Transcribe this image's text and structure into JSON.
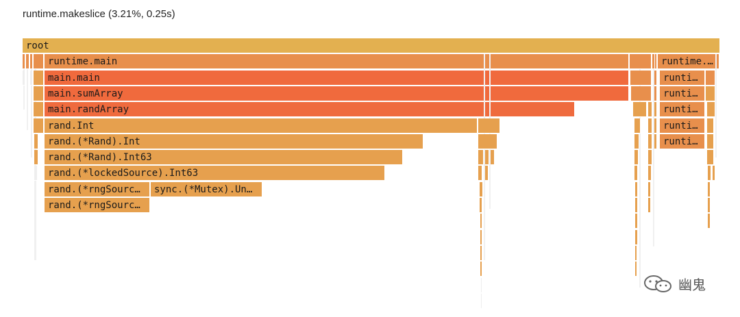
{
  "header": {
    "title": "runtime.makeslice (3.21%, 0.25s)"
  },
  "colors": {
    "root": "#e3b050",
    "level1": "#e88f4c",
    "hot": "#f06a3d",
    "hot2": "#ef6b3e",
    "warm": "#e6a04e",
    "ghost": "#eeeeee"
  },
  "frames": [
    {
      "label": "root",
      "color": "root"
    },
    {
      "label": "runtime.main",
      "color": "level1"
    },
    {
      "label": "runtime.…",
      "color": "level1"
    },
    {
      "label": "main.main",
      "color": "hot"
    },
    {
      "label": "runti…",
      "color": "level1"
    },
    {
      "label": "main.sumArray",
      "color": "hot"
    },
    {
      "label": "runti…",
      "color": "level1"
    },
    {
      "label": "main.randArray",
      "color": "hot2"
    },
    {
      "label": "runti…",
      "color": "level1"
    },
    {
      "label": "rand.Int",
      "color": "warm"
    },
    {
      "label": "runti…",
      "color": "level1"
    },
    {
      "label": "rand.(*Rand).Int",
      "color": "warm"
    },
    {
      "label": "runti…",
      "color": "level1"
    },
    {
      "label": "rand.(*Rand).Int63",
      "color": "warm"
    },
    {
      "label": "rand.(*lockedSource).Int63",
      "color": "warm"
    },
    {
      "label": "rand.(*rngSourc…",
      "color": "warm"
    },
    {
      "label": "sync.(*Mutex).Un…",
      "color": "warm"
    },
    {
      "label": "rand.(*rngSourc…",
      "color": "warm"
    }
  ],
  "watermark": {
    "text": "幽鬼",
    "icon": "wechat-icon"
  }
}
